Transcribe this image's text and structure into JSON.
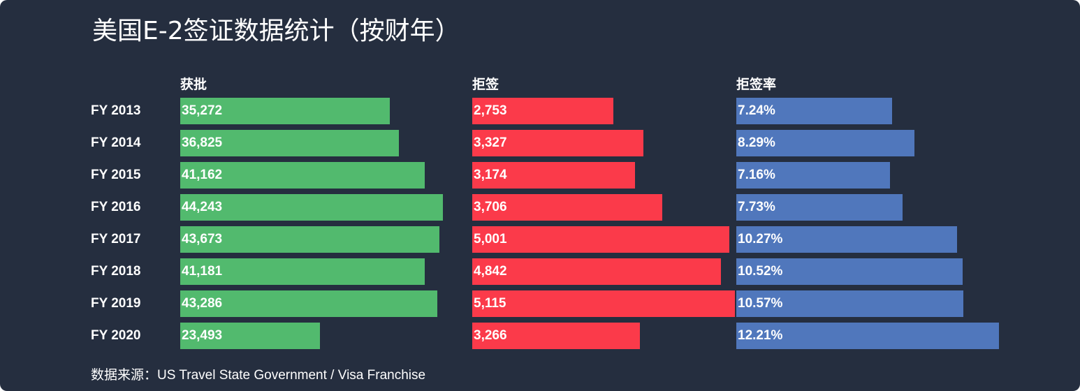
{
  "title": "美国E-2签证数据统计（按财年）",
  "source": {
    "label": "数据来源：",
    "text": "US Travel State Government / Visa Franchise"
  },
  "colors": {
    "background": "#252e3f",
    "approved": "#52ba6e",
    "refused": "#fb3a4a",
    "rate": "#5077bc"
  },
  "chart_data": {
    "type": "bar",
    "orientation": "horizontal",
    "categories": [
      "FY 2013",
      "FY 2014",
      "FY 2015",
      "FY 2016",
      "FY 2017",
      "FY 2018",
      "FY 2019",
      "FY 2020"
    ],
    "series": [
      {
        "name": "获批",
        "values": [
          35272,
          36825,
          41162,
          44243,
          43673,
          41181,
          43286,
          23493
        ],
        "labels": [
          "35,272",
          "36,825",
          "41,162",
          "44,243",
          "43,673",
          "41,181",
          "43,286",
          "23,493"
        ],
        "max": 44243
      },
      {
        "name": "拒签",
        "values": [
          2753,
          3327,
          3174,
          3706,
          5001,
          4842,
          5115,
          3266
        ],
        "labels": [
          "2,753",
          "3,327",
          "3,174",
          "3,706",
          "5,001",
          "4,842",
          "5,115",
          "3,266"
        ],
        "max": 5115
      },
      {
        "name": "拒签率",
        "values": [
          7.24,
          8.29,
          7.16,
          7.73,
          10.27,
          10.52,
          10.57,
          12.21
        ],
        "labels": [
          "7.24%",
          "8.29%",
          "7.16%",
          "7.73%",
          "10.27%",
          "10.52%",
          "10.57%",
          "12.21%"
        ],
        "max": 12.21
      }
    ],
    "grid": false,
    "legend": "none"
  }
}
